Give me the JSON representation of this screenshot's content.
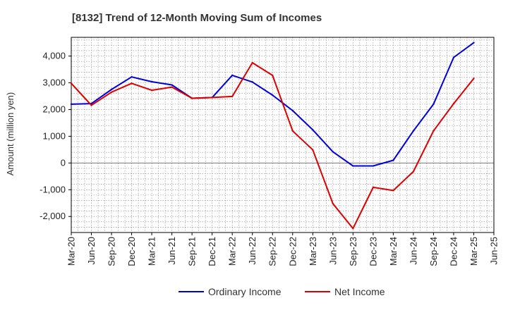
{
  "chart_data": {
    "type": "line",
    "title": "[8132]  Trend of 12-Month Moving Sum of Incomes",
    "xlabel": "",
    "ylabel": "Amount (million yen)",
    "ylim": [
      -2600,
      4700
    ],
    "yticks": [
      -2000,
      -1000,
      0,
      1000,
      2000,
      3000,
      4000
    ],
    "ytick_labels": [
      "-2,000",
      "-1,000",
      "0",
      "1,000",
      "2,000",
      "3,000",
      "4,000"
    ],
    "categories": [
      "Mar-20",
      "Jun-20",
      "Sep-20",
      "Dec-20",
      "Mar-21",
      "Jun-21",
      "Sep-21",
      "Dec-21",
      "Mar-22",
      "Jun-22",
      "Sep-22",
      "Dec-22",
      "Mar-23",
      "Jun-23",
      "Sep-23",
      "Dec-23",
      "Mar-24",
      "Jun-24",
      "Sep-24",
      "Dec-24",
      "Mar-25",
      "Jun-25"
    ],
    "grid": true,
    "legend_position": "bottom-center",
    "series": [
      {
        "name": "Ordinary Income",
        "color": "#0000dd",
        "values": [
          2200,
          2220,
          2750,
          3220,
          3040,
          2920,
          2420,
          2450,
          3280,
          3030,
          2540,
          1960,
          1240,
          420,
          -110,
          -110,
          100,
          1200,
          2200,
          3950,
          4500,
          null
        ]
      },
      {
        "name": "Net Income",
        "color": "#dd0000",
        "values": [
          2980,
          2160,
          2650,
          2980,
          2720,
          2840,
          2420,
          2450,
          2490,
          3750,
          3280,
          1200,
          490,
          -1520,
          -2450,
          -910,
          -1030,
          -320,
          1200,
          2220,
          3160,
          null
        ]
      }
    ]
  }
}
